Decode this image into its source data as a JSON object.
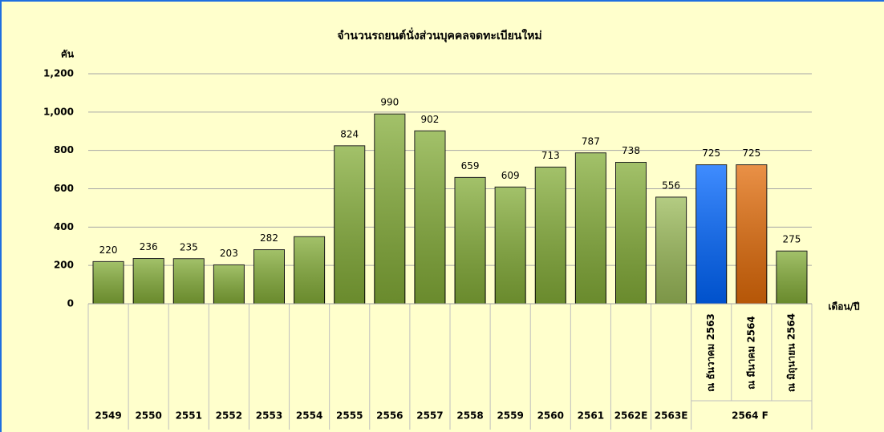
{
  "chart_data": {
    "type": "bar",
    "title": "จำนวนรถยนต์นั่งส่วนบุคคลจดทะเบียนใหม่",
    "y_label": "คัน",
    "x_label": "เดือน/ปี",
    "categories": [
      "2549",
      "2550",
      "2551",
      "2552",
      "2553",
      "2554",
      "2555",
      "2556",
      "2557",
      "2558",
      "2559",
      "2560",
      "2561",
      "2562E",
      "2563E",
      "ณ ธันวาคม 2563",
      "ณ มีนาคม 2564",
      "ณ มิถุนายน 2564"
    ],
    "group_label": "2564 F",
    "values": [
      220,
      236,
      235,
      203,
      282,
      350,
      824,
      990,
      902,
      659,
      609,
      713,
      787,
      738,
      556,
      725,
      725,
      275
    ],
    "value_labels": [
      "220",
      "236",
      "235",
      "203",
      "282",
      null,
      "824",
      "990",
      "902",
      "659",
      "609",
      "713",
      "787",
      "738",
      "556",
      "725",
      "725",
      "275"
    ],
    "colors": [
      "#84ad38",
      "#84ad38",
      "#84ad38",
      "#84ad38",
      "#84ad38",
      "#84ad38",
      "#84ad38",
      "#84ad38",
      "#84ad38",
      "#84ad38",
      "#84ad38",
      "#84ad38",
      "#84ad38",
      "#84ad38",
      "#9bbb59",
      "#0066ff",
      "#e36c09",
      "#84ad38"
    ],
    "ylim": [
      0,
      1200
    ],
    "yticks": [
      0,
      200,
      400,
      600,
      800,
      {
        "value": 1000,
        "label": "1,000"
      },
      {
        "value": 1200,
        "label": "1,200"
      }
    ],
    "grid": true
  }
}
